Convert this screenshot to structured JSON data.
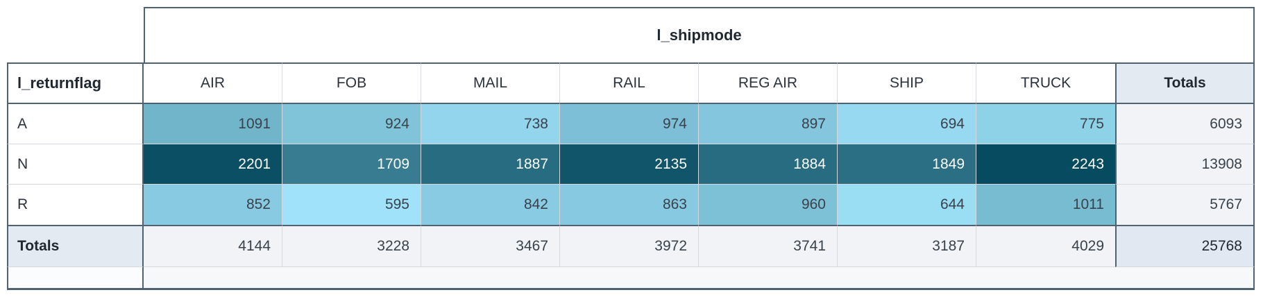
{
  "chart_data": {
    "type": "heatmap",
    "title": "l_shipmode",
    "row_dimension": "l_returnflag",
    "totals_label": "Totals",
    "columns": [
      "AIR",
      "FOB",
      "MAIL",
      "RAIL",
      "REG AIR",
      "SHIP",
      "TRUCK"
    ],
    "rows": [
      "A",
      "N",
      "R"
    ],
    "values": [
      [
        1091,
        924,
        738,
        974,
        897,
        694,
        775
      ],
      [
        2201,
        1709,
        1887,
        2135,
        1884,
        1849,
        2243
      ],
      [
        852,
        595,
        842,
        863,
        960,
        644,
        1011
      ]
    ],
    "row_totals": [
      6093,
      13908,
      5767
    ],
    "column_totals": [
      4144,
      3228,
      3467,
      3972,
      3741,
      3187,
      4029
    ],
    "grand_total": 25768,
    "color_scale": {
      "min_value": 595,
      "max_value": 2243,
      "min_color": "#9fe2f9",
      "max_color": "#064b60"
    },
    "legend": "none",
    "grid": "on"
  },
  "colors": {
    "dark_border": "#4f6272",
    "light_border": "#d5d9de",
    "header_text": "#1f2730",
    "body_text": "#2a323c",
    "number_text": "#39424c",
    "white_text": "#ffffff",
    "totals_header_bg": "#e4eaf2",
    "totals_cell_bg": "#f1f3f6",
    "grand_total_bg": "#e2e8f1",
    "footer_bg": "#f7f8fa",
    "footer_label_bg": "#fbfcfd",
    "header_bg": "#ffffff"
  }
}
